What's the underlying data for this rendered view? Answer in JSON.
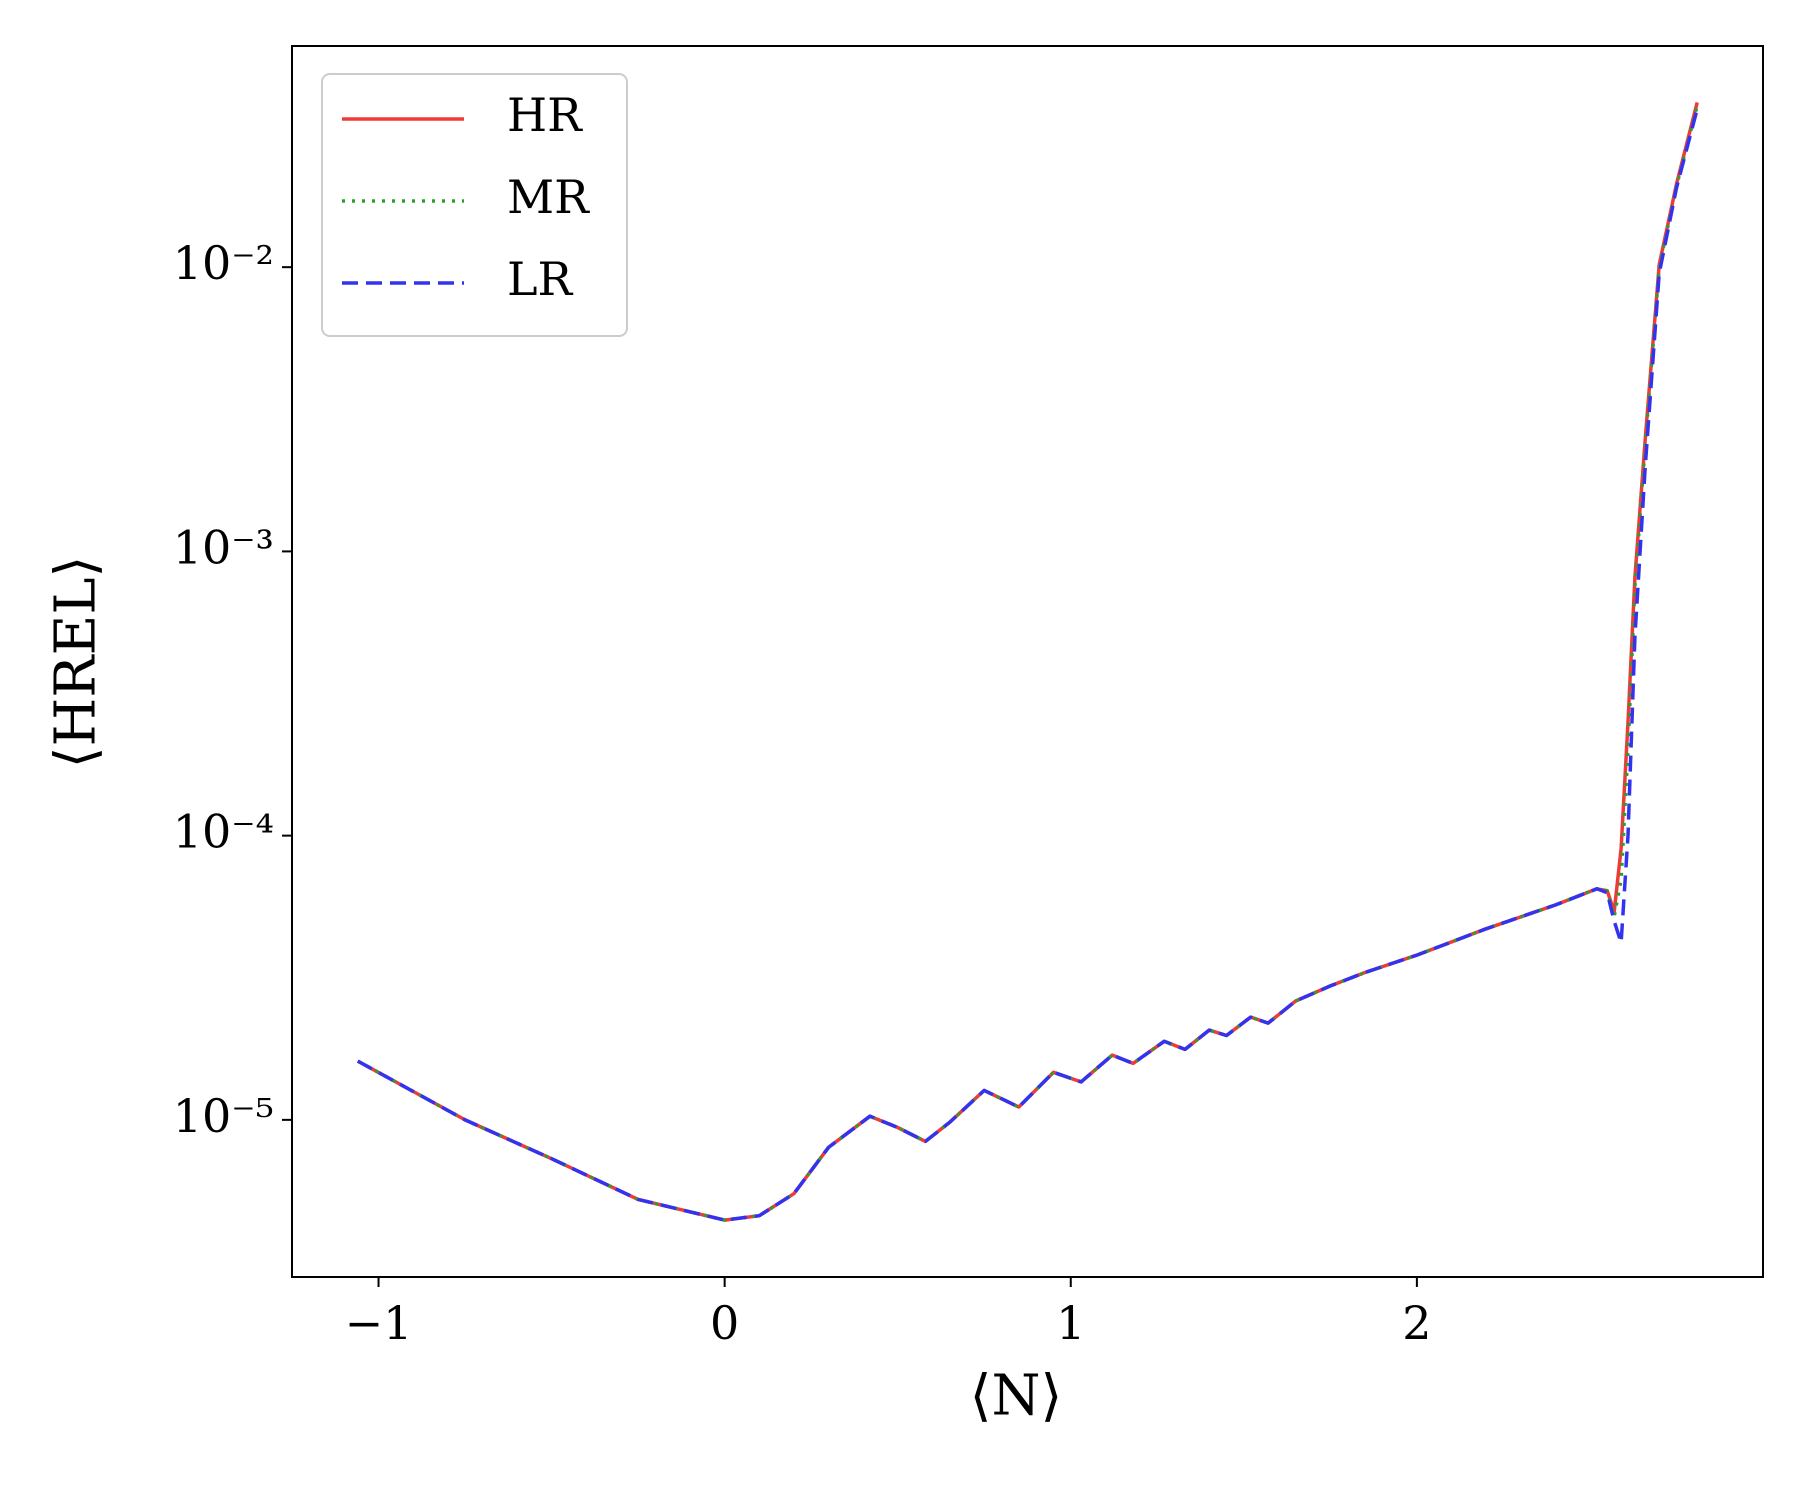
{
  "chart_data": {
    "type": "line",
    "xlabel": "⟨N⟩",
    "ylabel": "⟨HREL⟩",
    "x": [
      -1.06,
      -0.75,
      -0.5,
      -0.25,
      0,
      0.1,
      0.2,
      0.3,
      0.42,
      0.5,
      0.58,
      0.65,
      0.75,
      0.85,
      0.95,
      1.03,
      1.12,
      1.18,
      1.27,
      1.33,
      1.4,
      1.45,
      1.52,
      1.57,
      1.65,
      1.75,
      1.85,
      2.0,
      2.2,
      2.4,
      2.52,
      2.55,
      2.57,
      2.59,
      2.61,
      2.63,
      2.66,
      2.7,
      2.75,
      2.81
    ],
    "series": [
      {
        "name": "HR",
        "color": "#f03a3a",
        "dash": "solid",
        "values": [
          1.61e-05,
          1e-05,
          7.3e-06,
          5.25e-06,
          4.44e-06,
          4.6e-06,
          5.5e-06,
          8e-06,
          1.03e-05,
          9.4e-06,
          8.4e-06,
          9.8e-06,
          1.27e-05,
          1.11e-05,
          1.47e-05,
          1.36e-05,
          1.69e-05,
          1.58e-05,
          1.89e-05,
          1.77e-05,
          2.07e-05,
          1.98e-05,
          2.3e-05,
          2.19e-05,
          2.62e-05,
          2.96e-05,
          3.3e-05,
          3.8e-05,
          4.7e-05,
          5.7e-05,
          6.5e-05,
          6.4e-05,
          5.4e-05,
          9e-05,
          0.00025,
          0.00081,
          0.0025,
          0.0102,
          0.0196,
          0.038
        ]
      },
      {
        "name": "MR",
        "color": "#2ca02c",
        "dash": "dotted",
        "values": [
          1.61e-05,
          1e-05,
          7.3e-06,
          5.25e-06,
          4.44e-06,
          4.6e-06,
          5.5e-06,
          8e-06,
          1.03e-05,
          9.4e-06,
          8.4e-06,
          9.8e-06,
          1.27e-05,
          1.11e-05,
          1.47e-05,
          1.36e-05,
          1.69e-05,
          1.58e-05,
          1.89e-05,
          1.77e-05,
          2.07e-05,
          1.98e-05,
          2.3e-05,
          2.19e-05,
          2.62e-05,
          2.96e-05,
          3.3e-05,
          3.8e-05,
          4.7e-05,
          5.7e-05,
          6.5e-05,
          6.4e-05,
          5.2e-05,
          7e-05,
          0.0002,
          0.00075,
          0.0024,
          0.01,
          0.0193,
          0.037
        ]
      },
      {
        "name": "LR",
        "color": "#3333ee",
        "dash": "dashed",
        "values": [
          1.61e-05,
          1e-05,
          7.3e-06,
          5.25e-06,
          4.44e-06,
          4.6e-06,
          5.5e-06,
          8e-06,
          1.03e-05,
          9.4e-06,
          8.4e-06,
          9.8e-06,
          1.27e-05,
          1.11e-05,
          1.47e-05,
          1.36e-05,
          1.69e-05,
          1.58e-05,
          1.89e-05,
          1.77e-05,
          2.07e-05,
          1.98e-05,
          2.3e-05,
          2.19e-05,
          2.62e-05,
          2.96e-05,
          3.3e-05,
          3.8e-05,
          4.7e-05,
          5.7e-05,
          6.5e-05,
          6.3e-05,
          5e-05,
          4.2e-05,
          0.0001,
          0.0005,
          0.002,
          0.0095,
          0.019,
          0.036
        ]
      }
    ],
    "xlim": [
      -1.25,
      3.0
    ],
    "xticks": [
      {
        "value": -1,
        "label": "−1"
      },
      0,
      1,
      2
    ],
    "ylim": [
      2.8e-06,
      0.06
    ],
    "yticks": [
      {
        "value": 1e-05,
        "label": "10⁻⁵"
      },
      {
        "value": 0.0001,
        "label": "10⁻⁴"
      },
      {
        "value": 0.001,
        "label": "10⁻³"
      },
      {
        "value": 0.01,
        "label": "10⁻²"
      }
    ],
    "log_y": true,
    "grid": false,
    "legend": "upper-left"
  }
}
